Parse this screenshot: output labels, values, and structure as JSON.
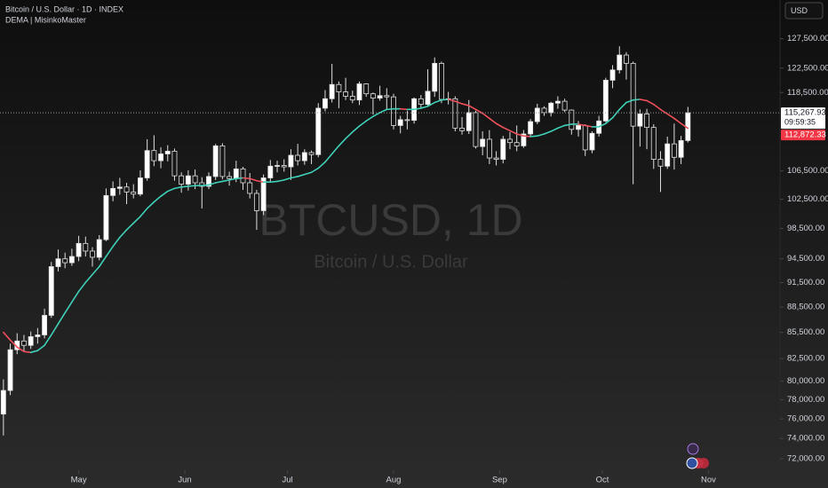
{
  "chart_data": {
    "type": "candlestick",
    "title": "Bitcoin / U.S. Dollar · 1D · INDEX",
    "indicator_label": "DEMA | MisinkoMaster",
    "currency": "USD",
    "watermark": "BTCUSD, 1D",
    "watermark_subtitle": "Bitcoin / U.S. Dollar",
    "log_scale": true,
    "up_color": "#ffffff",
    "down_color": "#161616",
    "wick_color": "#e0e0e0",
    "xlim": [
      -0.5,
      113.2
    ],
    "xticks": [
      {
        "value": 11,
        "label": "May"
      },
      {
        "value": 26.5,
        "label": "Jun"
      },
      {
        "value": 41.5,
        "label": "Jul"
      },
      {
        "value": 57,
        "label": "Aug"
      },
      {
        "value": 72.5,
        "label": "Sep"
      },
      {
        "value": 87.5,
        "label": "Oct"
      },
      {
        "value": 103,
        "label": "Nov"
      }
    ],
    "ylim": [
      70870,
      134400
    ],
    "yticks": [
      {
        "value": 127500,
        "label": "127,500.00"
      },
      {
        "value": 122500,
        "label": "122,500.00"
      },
      {
        "value": 118500,
        "label": "118,500.00"
      },
      {
        "value": 106500,
        "label": "106,500.00"
      },
      {
        "value": 102500,
        "label": "102,500.00"
      },
      {
        "value": 98500,
        "label": "98,500.00"
      },
      {
        "value": 94500,
        "label": "94,500.00"
      },
      {
        "value": 91500,
        "label": "91,500.00"
      },
      {
        "value": 88500,
        "label": "88,500.00"
      },
      {
        "value": 85500,
        "label": "85,500.00"
      },
      {
        "value": 82500,
        "label": "82,500.00"
      },
      {
        "value": 80000,
        "label": "80,000.00"
      },
      {
        "value": 78000,
        "label": "78,000.00"
      },
      {
        "value": 76000,
        "label": "76,000.00"
      },
      {
        "value": 74000,
        "label": "74,000.00"
      },
      {
        "value": 72000,
        "label": "72,000.00"
      }
    ],
    "price_labels": [
      {
        "value": 115267.93,
        "label": "115,267.93",
        "sublabel": "09:59:35",
        "color": "#ffffff",
        "text_color": "#131722"
      },
      {
        "value": 112872.33,
        "label": "112,872.33",
        "color": "#f23645",
        "text_color": "#ffffff"
      }
    ],
    "ohlc": [
      [
        76500,
        80200,
        74300,
        79000
      ],
      [
        79000,
        84200,
        78500,
        83500
      ],
      [
        83500,
        85400,
        83000,
        84500
      ],
      [
        84500,
        85200,
        83300,
        84000
      ],
      [
        84000,
        85600,
        83600,
        85000
      ],
      [
        85000,
        86000,
        84200,
        85200
      ],
      [
        85200,
        88300,
        84800,
        87500
      ],
      [
        87500,
        94100,
        87200,
        93500
      ],
      [
        93500,
        95700,
        92900,
        94500
      ],
      [
        94500,
        95300,
        93300,
        94000
      ],
      [
        94000,
        95800,
        93600,
        94800
      ],
      [
        94800,
        97500,
        94200,
        96500
      ],
      [
        96500,
        97400,
        94800,
        95500
      ],
      [
        95500,
        96000,
        93500,
        94700
      ],
      [
        94700,
        97600,
        94300,
        97000
      ],
      [
        97000,
        104000,
        96800,
        103000
      ],
      [
        103000,
        105000,
        102200,
        104000
      ],
      [
        104000,
        105500,
        103100,
        104200
      ],
      [
        104200,
        104800,
        101800,
        103500
      ],
      [
        103500,
        104600,
        102600,
        103200
      ],
      [
        103200,
        106600,
        102900,
        105500
      ],
      [
        105500,
        111200,
        105100,
        109500
      ],
      [
        109500,
        111800,
        107200,
        108000
      ],
      [
        108000,
        110000,
        106900,
        109000
      ],
      [
        109000,
        110300,
        107900,
        109400
      ],
      [
        109400,
        109800,
        105100,
        105800
      ],
      [
        105800,
        106300,
        103400,
        104600
      ],
      [
        104600,
        106600,
        103700,
        105800
      ],
      [
        105800,
        106700,
        103900,
        104800
      ],
      [
        104800,
        105600,
        101200,
        104300
      ],
      [
        104300,
        106300,
        103900,
        105700
      ],
      [
        105700,
        110500,
        105200,
        110200
      ],
      [
        110200,
        110600,
        105300,
        105700
      ],
      [
        105700,
        106400,
        104400,
        105400
      ],
      [
        105400,
        108000,
        104900,
        106800
      ],
      [
        106800,
        107100,
        103800,
        104800
      ],
      [
        104800,
        106200,
        102600,
        103300
      ],
      [
        103300,
        103800,
        98300,
        100900
      ],
      [
        100900,
        106000,
        100300,
        105500
      ],
      [
        105500,
        108100,
        105000,
        107200
      ],
      [
        107200,
        108000,
        106300,
        107300
      ],
      [
        107300,
        108200,
        106400,
        107100
      ],
      [
        107100,
        109700,
        105200,
        108800
      ],
      [
        108800,
        110500,
        107300,
        108000
      ],
      [
        108000,
        109700,
        107400,
        109200
      ],
      [
        109200,
        109500,
        107500,
        108900
      ],
      [
        108900,
        116800,
        108500,
        116000
      ],
      [
        116000,
        118900,
        115500,
        117500
      ],
      [
        117500,
        123200,
        116900,
        119800
      ],
      [
        119800,
        120300,
        116000,
        118600
      ],
      [
        118600,
        120900,
        117300,
        117900
      ],
      [
        117900,
        118800,
        116800,
        117300
      ],
      [
        117300,
        120300,
        116500,
        119900
      ],
      [
        119900,
        120000,
        117800,
        118300
      ],
      [
        118300,
        118500,
        115000,
        117600
      ],
      [
        117600,
        119600,
        117200,
        118000
      ],
      [
        118000,
        119200,
        115700,
        117800
      ],
      [
        117800,
        118300,
        112700,
        113300
      ],
      [
        113300,
        114800,
        112100,
        114200
      ],
      [
        114200,
        115600,
        112700,
        114100
      ],
      [
        114100,
        117700,
        113600,
        117500
      ],
      [
        117500,
        118100,
        115900,
        116600
      ],
      [
        116600,
        122300,
        116200,
        118700
      ],
      [
        118700,
        124300,
        117800,
        123300
      ],
      [
        123300,
        123600,
        116800,
        117400
      ],
      [
        117400,
        118600,
        116600,
        117500
      ],
      [
        117500,
        117900,
        112400,
        112900
      ],
      [
        112900,
        114600,
        111900,
        112500
      ],
      [
        112500,
        117300,
        112000,
        115300
      ],
      [
        115300,
        115600,
        109800,
        110100
      ],
      [
        110100,
        112400,
        108800,
        111200
      ],
      [
        111200,
        112600,
        107500,
        108400
      ],
      [
        108400,
        109400,
        107300,
        108200
      ],
      [
        108200,
        111700,
        107600,
        111200
      ],
      [
        111200,
        112300,
        109700,
        110700
      ],
      [
        110700,
        113300,
        109400,
        110200
      ],
      [
        110200,
        112600,
        109900,
        112000
      ],
      [
        112000,
        114300,
        111700,
        113900
      ],
      [
        113900,
        116700,
        113500,
        116000
      ],
      [
        116000,
        116300,
        114800,
        115300
      ],
      [
        115300,
        117000,
        114700,
        116800
      ],
      [
        116800,
        117900,
        115900,
        117100
      ],
      [
        117100,
        117500,
        115400,
        115700
      ],
      [
        115700,
        115800,
        111900,
        112700
      ],
      [
        112700,
        114000,
        111600,
        113300
      ],
      [
        113300,
        113500,
        108700,
        109600
      ],
      [
        109600,
        112400,
        109100,
        112100
      ],
      [
        112100,
        114800,
        111600,
        114000
      ],
      [
        114000,
        120900,
        113800,
        120500
      ],
      [
        120500,
        123000,
        119200,
        122200
      ],
      [
        122200,
        126200,
        121600,
        124700
      ],
      [
        124700,
        125200,
        120600,
        123300
      ],
      [
        123300,
        123600,
        104600,
        113200
      ],
      [
        113200,
        115800,
        110100,
        115100
      ],
      [
        115100,
        115900,
        109700,
        113000
      ],
      [
        113000,
        113500,
        106800,
        108200
      ],
      [
        108200,
        109400,
        103500,
        107200
      ],
      [
        107200,
        111600,
        106800,
        110500
      ],
      [
        110500,
        113600,
        106700,
        108500
      ],
      [
        108500,
        111700,
        107500,
        111000
      ],
      [
        111000,
        116200,
        110700,
        115267.93
      ]
    ],
    "dema": {
      "up_color": "#3fd0b8",
      "down_color": "#ef4f5a",
      "values": [
        85500,
        84600,
        83800,
        83300,
        83200,
        83400,
        84000,
        85200,
        86500,
        87800,
        89100,
        90400,
        91500,
        92500,
        93500,
        94800,
        96100,
        97300,
        98300,
        99200,
        100100,
        101200,
        102100,
        102900,
        103600,
        104000,
        104200,
        104300,
        104400,
        104400,
        104500,
        104800,
        105000,
        105200,
        105400,
        105500,
        105400,
        105100,
        104900,
        104900,
        105000,
        105200,
        105500,
        105700,
        106000,
        106300,
        106900,
        107800,
        109000,
        110200,
        111300,
        112300,
        113200,
        114000,
        114700,
        115300,
        115800,
        115900,
        115900,
        115800,
        115800,
        116000,
        116300,
        116900,
        117300,
        117400,
        117100,
        116700,
        116400,
        115800,
        115200,
        114400,
        113600,
        113000,
        112500,
        112000,
        111700,
        111600,
        111700,
        112000,
        112400,
        112900,
        113300,
        113500,
        113500,
        113300,
        113100,
        113100,
        113600,
        114500,
        115800,
        116900,
        117300,
        117400,
        117200,
        116600,
        115800,
        115100,
        114400,
        113600,
        112872.33
      ]
    }
  }
}
